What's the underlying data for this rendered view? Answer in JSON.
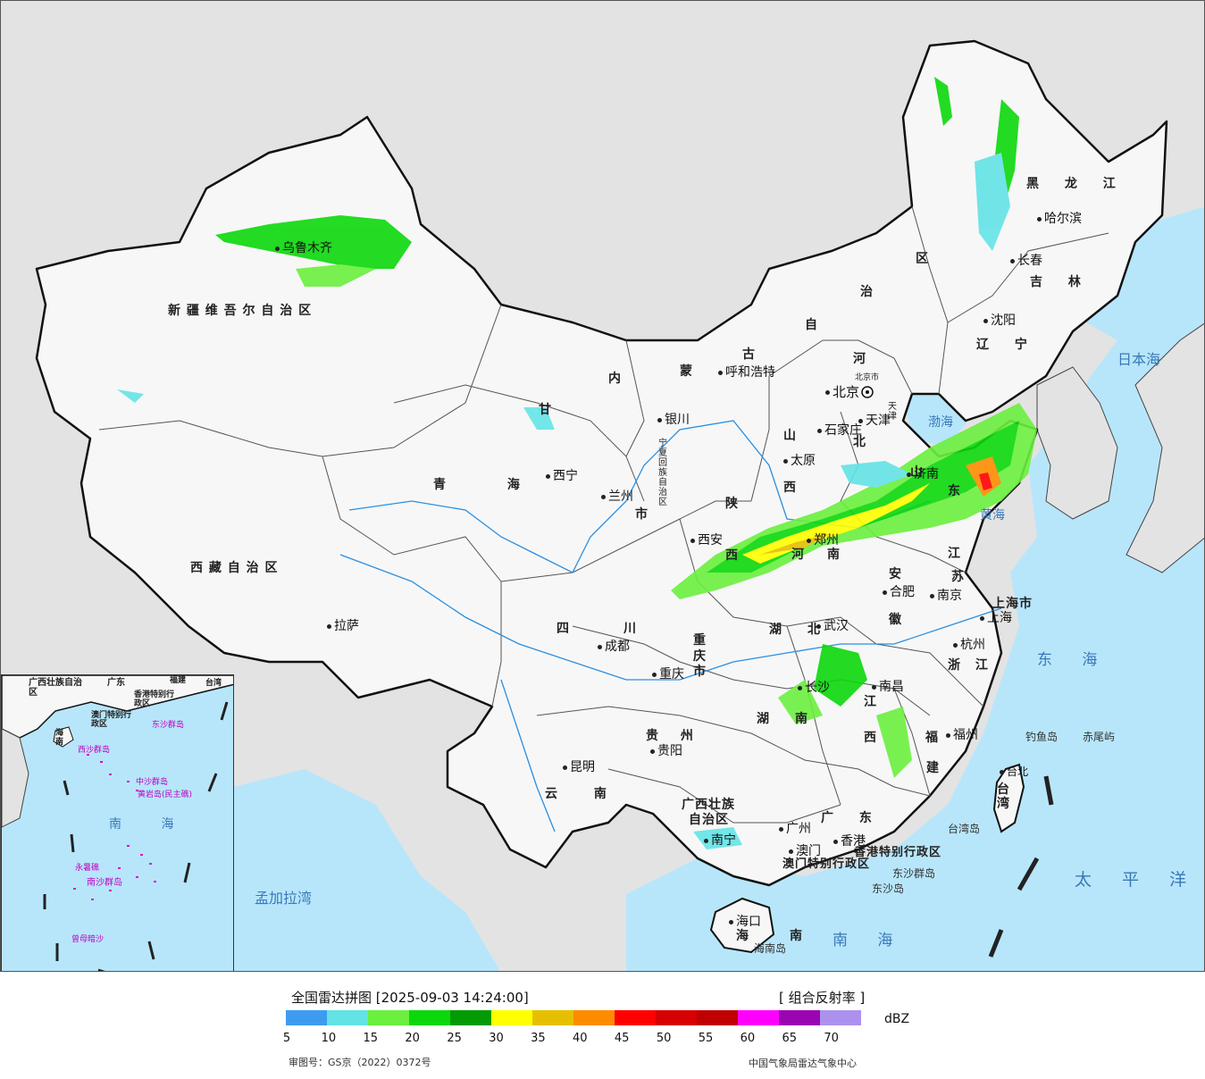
{
  "map": {
    "colors": {
      "sea": "#b7e6fb",
      "land_china": "#f7f7f7",
      "land_other": "#e3e3e3",
      "border": "#111111",
      "river": "#2b8fe0"
    },
    "provinces": {
      "xinjiang": "新 疆 维 吾 尔 自 治 区",
      "xizang": "西 藏 自 治 区",
      "qinghai": "青 海",
      "gansu": "甘",
      "neimeng_1": "内",
      "neimeng_2": "蒙",
      "neimeng_3": "古",
      "neimeng_4": "自",
      "neimeng_5": "治",
      "neimeng_6": "区",
      "heilongjiang": "黑 龙 江",
      "jilin": "吉 林",
      "liaoning": "辽 宁",
      "hebei_1": "河",
      "hebei_2": "北",
      "shanxi_1": "山",
      "shanxi_2": "西",
      "shaanxi_1": "陕",
      "shaanxi_2": "西",
      "ningxia": "宁夏回族自治区",
      "shandong_1": "山",
      "shandong_2": "东",
      "henan_1": "河",
      "henan_2": "南",
      "jiangsu_1": "江",
      "jiangsu_2": "苏",
      "anhui_1": "安",
      "anhui_2": "徽",
      "shanghai": "上海市",
      "zhejiang": "浙 江",
      "hubei_1": "湖",
      "hubei_2": "北",
      "sichuan_1": "四",
      "sichuan_2": "川",
      "chongqing_1": "重",
      "chongqing_2": "庆",
      "chongqing_3": "市",
      "hunan_1": "湖",
      "hunan_2": "南",
      "jiangxi_1": "江",
      "jiangxi_2": "西",
      "fujian_1": "福",
      "fujian_2": "建",
      "guizhou": "贵 州",
      "yunnan": "云 南",
      "guangxi_1": "广西壮族",
      "guangxi_2": "自治区",
      "guangdong": "广 东",
      "hainan_1": "海",
      "hainan_2": "南",
      "taiwan": "台湾",
      "xianggang": "香港特别行政区",
      "aomen": "澳门特别行政区",
      "tianjin": "天津",
      "beijing": "北京市",
      "gansu_shi": "市"
    },
    "cities": {
      "urumqi": "乌鲁木齐",
      "lhasa": "拉萨",
      "xining": "西宁",
      "lanzhou": "兰州",
      "yinchuan": "银川",
      "hohhot": "呼和浩特",
      "beijing": "北京",
      "tianjin": "天津",
      "shijiazhuang": "石家庄",
      "taiyuan": "太原",
      "xian": "西安",
      "zhengzhou": "郑州",
      "jinan": "济南",
      "harbin": "哈尔滨",
      "changchun": "长春",
      "shenyang": "沈阳",
      "chengdu": "成都",
      "chongqing": "重庆",
      "wuhan": "武汉",
      "hefei": "合肥",
      "nanjing": "南京",
      "shanghai": "上海",
      "hangzhou": "杭州",
      "changsha": "长沙",
      "nanchang": "南昌",
      "fuzhou": "福州",
      "guiyang": "贵阳",
      "kunming": "昆明",
      "nanning": "南宁",
      "guangzhou": "广州",
      "aomen": "澳门",
      "xianggang": "香港",
      "haikou": "海口",
      "taibei": "台北"
    },
    "seas": {
      "bohai": "渤海",
      "huanghai": "黄海",
      "donghai": "东 海",
      "nanhai": "南 海",
      "ribenhai": "日本海",
      "taipingyang": "太 平 洋",
      "mengjialawan": "孟加拉湾"
    },
    "islands": {
      "diaoyudao": "钓鱼岛",
      "chiweiyu": "赤尾屿",
      "taiwandao": "台湾岛",
      "dongsha_qundao": "东沙群岛",
      "dongshadao": "东沙岛",
      "hainandao": "海南岛"
    },
    "inset": {
      "labels": {
        "guangxi": "广西壮族自治区",
        "guangdong": "广东",
        "fujian": "福建",
        "taiwan": "台湾",
        "xianggang": "香港特别行政区",
        "aomen": "澳门特别行政区",
        "dongsha": "东沙群岛",
        "hainan": "海南",
        "xisha": "西沙群岛",
        "zhongsha": "中沙群岛",
        "huangyan": "黄岩岛(民主礁)",
        "nanhai": "南 海",
        "yongshu": "永暑礁",
        "nansha": "南沙群岛",
        "zengmu": "曾母暗沙"
      }
    }
  },
  "legend": {
    "title": "全国雷达拼图 [2025-09-03 14:24:00]",
    "product": "[ 组合反射率 ]",
    "unit": "dBZ",
    "colors": [
      "#3d9cef",
      "#63e3e6",
      "#6bf03f",
      "#0bd80b",
      "#049a04",
      "#ffff00",
      "#e6c000",
      "#ff8c00",
      "#ff0000",
      "#d60000",
      "#c00000",
      "#ff00ff",
      "#9a05b2",
      "#ac92ee"
    ],
    "ticks": [
      "5",
      "10",
      "15",
      "20",
      "25",
      "30",
      "35",
      "40",
      "45",
      "50",
      "55",
      "60",
      "65",
      "70"
    ],
    "review_number": "审图号：GS京（2022）0372号",
    "agency": "中国气象局雷达气象中心"
  }
}
